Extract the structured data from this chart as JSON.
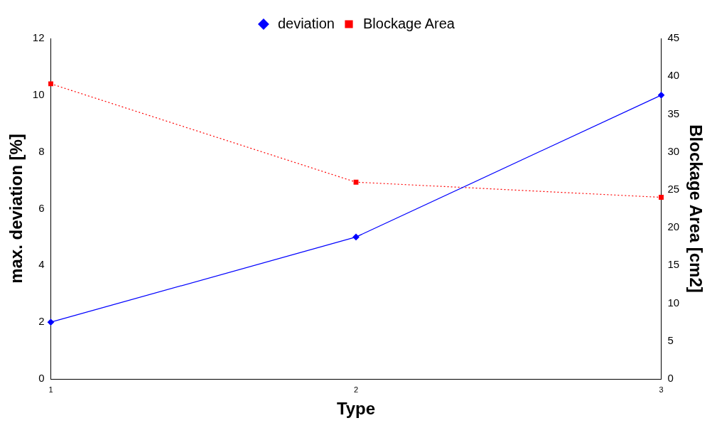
{
  "chart_data": {
    "type": "line",
    "xlabel": "Type",
    "ylabel": "max. deviation [%]",
    "y2label": "Blockage Area [cm2]",
    "categories": [
      "1",
      "2",
      "3"
    ],
    "series": [
      {
        "name": "deviation",
        "color": "#0000ff",
        "values": [
          2,
          5,
          10
        ],
        "marker": "diamond",
        "line_style": "solid"
      },
      {
        "name": "Blockage Area",
        "color": "#ff0000",
        "values": [
          39,
          26,
          24
        ],
        "axis": "y2",
        "marker": "square",
        "line_style": "dotted"
      }
    ],
    "ylim": [
      0,
      12
    ],
    "yticks": [
      0,
      2,
      4,
      6,
      8,
      10,
      12
    ],
    "y2lim": [
      0,
      45
    ],
    "y2ticks": [
      0,
      5,
      10,
      15,
      20,
      25,
      30,
      35,
      40,
      45
    ],
    "grid": false,
    "legend": "top"
  }
}
